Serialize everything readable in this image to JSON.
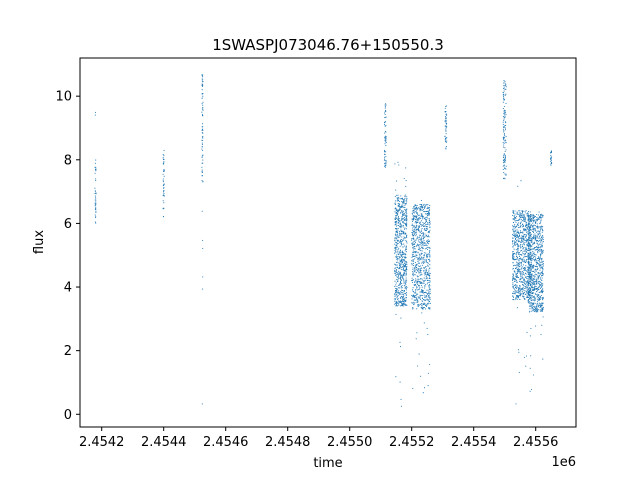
{
  "chart_data": {
    "type": "scatter",
    "title": "1SWASPJ073046.76+150550.3",
    "xlabel": "time",
    "ylabel": "flux",
    "x_offset_label": "1e6",
    "xlim": [
      2454130,
      2455730
    ],
    "ylim": [
      -0.4,
      11.2
    ],
    "x_ticks": [
      2454200,
      2454400,
      2454600,
      2454800,
      2455000,
      2455200,
      2455400,
      2455600
    ],
    "x_tick_labels": [
      "2.4542",
      "2.4544",
      "2.4546",
      "2.4548",
      "2.4550",
      "2.4552",
      "2.4554",
      "2.4556"
    ],
    "y_ticks": [
      0,
      2,
      4,
      6,
      8,
      10
    ],
    "y_tick_labels": [
      "0",
      "2",
      "4",
      "6",
      "8",
      "10"
    ],
    "grid": false,
    "marker_color": "#1f77b4",
    "series": [
      {
        "clusters": [
          {
            "x": 2454180,
            "x_spread": 2,
            "y_min": 6.0,
            "y_max": 8.0,
            "count": 40
          },
          {
            "x": 2454180,
            "x_spread": 1,
            "y_min": 9.3,
            "y_max": 9.5,
            "count": 2
          },
          {
            "x": 2454400,
            "x_spread": 2,
            "y_min": 6.2,
            "y_max": 8.3,
            "count": 45
          },
          {
            "x": 2454525,
            "x_spread": 2,
            "y_min": 7.2,
            "y_max": 10.7,
            "count": 70
          },
          {
            "x": 2454525,
            "x_spread": 1,
            "y_min": 0.3,
            "y_max": 6.5,
            "count": 6
          },
          {
            "x": 2455115,
            "x_spread": 3,
            "y_min": 7.7,
            "y_max": 9.8,
            "count": 60
          },
          {
            "x": 2455165,
            "x_spread": 20,
            "y_min": 3.4,
            "y_max": 6.9,
            "count": 700
          },
          {
            "x": 2455165,
            "x_spread": 20,
            "y_min": 0.1,
            "y_max": 9.0,
            "count": 30
          },
          {
            "x": 2455230,
            "x_spread": 30,
            "y_min": 3.3,
            "y_max": 6.6,
            "count": 800
          },
          {
            "x": 2455230,
            "x_spread": 30,
            "y_min": 0.5,
            "y_max": 7.0,
            "count": 30
          },
          {
            "x": 2455310,
            "x_spread": 3,
            "y_min": 8.3,
            "y_max": 9.7,
            "count": 45
          },
          {
            "x": 2455500,
            "x_spread": 5,
            "y_min": 7.4,
            "y_max": 10.5,
            "count": 120
          },
          {
            "x": 2455555,
            "x_spread": 30,
            "y_min": 3.6,
            "y_max": 6.4,
            "count": 800
          },
          {
            "x": 2455600,
            "x_spread": 25,
            "y_min": 3.2,
            "y_max": 6.3,
            "count": 800
          },
          {
            "x": 2455580,
            "x_spread": 45,
            "y_min": 0.2,
            "y_max": 7.5,
            "count": 40
          },
          {
            "x": 2455650,
            "x_spread": 2,
            "y_min": 7.8,
            "y_max": 8.3,
            "count": 25
          }
        ]
      }
    ]
  }
}
